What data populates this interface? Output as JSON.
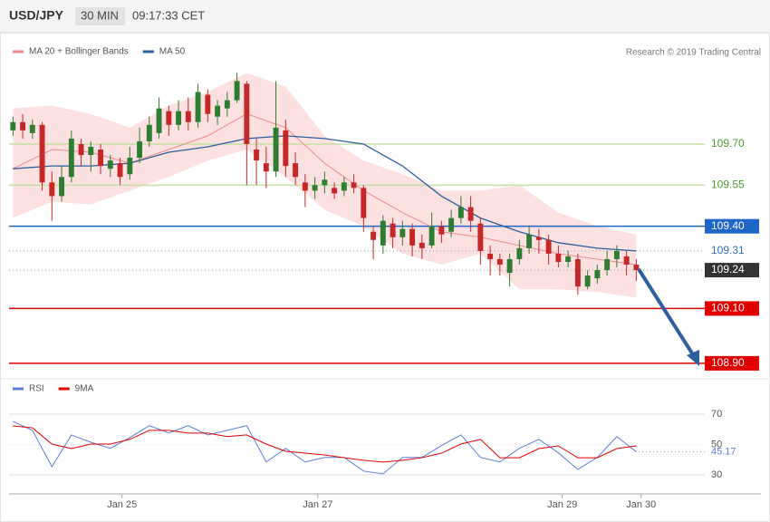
{
  "header": {
    "symbol": "USD/JPY",
    "interval": "30 MIN",
    "time": "09:17:33 CET"
  },
  "chart_data": [
    {
      "type": "candlestick",
      "credit": "Research © 2019 Trading Central",
      "up_color": "#2e7d32",
      "down_color": "#c62828",
      "candles": [
        [
          109.75,
          109.8,
          109.73,
          109.78
        ],
        [
          109.78,
          109.81,
          109.72,
          109.75
        ],
        [
          109.74,
          109.79,
          109.72,
          109.77
        ],
        [
          109.77,
          109.78,
          109.53,
          109.56
        ],
        [
          109.56,
          109.6,
          109.42,
          109.51
        ],
        [
          109.51,
          109.62,
          109.49,
          109.58
        ],
        [
          109.58,
          109.75,
          109.56,
          109.72
        ],
        [
          109.7,
          109.72,
          109.62,
          109.66
        ],
        [
          109.66,
          109.71,
          109.6,
          109.69
        ],
        [
          109.68,
          109.7,
          109.59,
          109.62
        ],
        [
          109.61,
          109.66,
          109.58,
          109.64
        ],
        [
          109.63,
          109.65,
          109.55,
          109.58
        ],
        [
          109.59,
          109.69,
          109.57,
          109.65
        ],
        [
          109.65,
          109.76,
          109.63,
          109.71
        ],
        [
          109.71,
          109.8,
          109.69,
          109.77
        ],
        [
          109.74,
          109.87,
          109.72,
          109.83
        ],
        [
          109.82,
          109.84,
          109.73,
          109.77
        ],
        [
          109.77,
          109.86,
          109.75,
          109.82
        ],
        [
          109.82,
          109.87,
          109.75,
          109.78
        ],
        [
          109.78,
          109.92,
          109.76,
          109.89
        ],
        [
          109.88,
          109.9,
          109.78,
          109.81
        ],
        [
          109.8,
          109.86,
          109.77,
          109.84
        ],
        [
          109.83,
          109.89,
          109.8,
          109.86
        ],
        [
          109.86,
          109.96,
          109.85,
          109.93
        ],
        [
          109.92,
          109.93,
          109.55,
          109.7
        ],
        [
          109.68,
          109.72,
          109.55,
          109.64
        ],
        [
          109.63,
          109.69,
          109.54,
          109.6
        ],
        [
          109.6,
          109.93,
          109.58,
          109.76
        ],
        [
          109.75,
          109.79,
          109.58,
          109.62
        ],
        [
          109.63,
          109.67,
          109.55,
          109.58
        ],
        [
          109.56,
          109.59,
          109.47,
          109.53
        ],
        [
          109.53,
          109.58,
          109.5,
          109.55
        ],
        [
          109.55,
          109.6,
          109.52,
          109.57
        ],
        [
          109.54,
          109.56,
          109.5,
          109.52
        ],
        [
          109.53,
          109.58,
          109.51,
          109.56
        ],
        [
          109.56,
          109.59,
          109.52,
          109.54
        ],
        [
          109.54,
          109.55,
          109.38,
          109.43
        ],
        [
          109.38,
          109.4,
          109.28,
          109.35
        ],
        [
          109.33,
          109.44,
          109.3,
          109.42
        ],
        [
          109.41,
          109.43,
          109.32,
          109.36
        ],
        [
          109.36,
          109.42,
          109.33,
          109.39
        ],
        [
          109.39,
          109.41,
          109.29,
          109.33
        ],
        [
          109.34,
          109.37,
          109.28,
          109.32
        ],
        [
          109.33,
          109.45,
          109.32,
          109.4
        ],
        [
          109.4,
          109.42,
          109.34,
          109.37
        ],
        [
          109.38,
          109.46,
          109.36,
          109.43
        ],
        [
          109.43,
          109.51,
          109.41,
          109.47
        ],
        [
          109.47,
          109.51,
          109.38,
          109.42
        ],
        [
          109.41,
          109.43,
          109.26,
          109.31
        ],
        [
          109.3,
          109.33,
          109.22,
          109.28
        ],
        [
          109.28,
          109.3,
          109.22,
          109.26
        ],
        [
          109.23,
          109.3,
          109.18,
          109.28
        ],
        [
          109.28,
          109.35,
          109.26,
          109.32
        ],
        [
          109.32,
          109.4,
          109.3,
          109.37
        ],
        [
          109.36,
          109.39,
          109.3,
          109.35
        ],
        [
          109.35,
          109.37,
          109.26,
          109.3
        ],
        [
          109.3,
          109.33,
          109.25,
          109.27
        ],
        [
          109.27,
          109.31,
          109.25,
          109.29
        ],
        [
          109.28,
          109.3,
          109.15,
          109.18
        ],
        [
          109.18,
          109.24,
          109.17,
          109.22
        ],
        [
          109.21,
          109.26,
          109.19,
          109.24
        ],
        [
          109.24,
          109.31,
          109.22,
          109.28
        ],
        [
          109.28,
          109.33,
          109.25,
          109.31
        ],
        [
          109.29,
          109.31,
          109.22,
          109.26
        ],
        [
          109.26,
          109.28,
          109.2,
          109.24
        ]
      ],
      "x": [
        0,
        4,
        8,
        12,
        16,
        20,
        24,
        28,
        32,
        36,
        40,
        44,
        48,
        52,
        56,
        60,
        64
      ],
      "series": [
        {
          "name": "MA 20 + Bollinger Bands",
          "color": "#f08a8a",
          "band_color": "#fde0e0",
          "values": [
            109.61,
            109.68,
            109.67,
            109.63,
            109.68,
            109.73,
            109.81,
            109.76,
            109.63,
            109.53,
            109.45,
            109.38,
            109.36,
            109.33,
            109.3,
            109.28,
            109.26
          ],
          "upper": [
            109.83,
            109.84,
            109.81,
            109.76,
            109.84,
            109.89,
            109.96,
            109.91,
            109.73,
            109.64,
            109.59,
            109.53,
            109.53,
            109.55,
            109.45,
            109.4,
            109.37
          ],
          "lower": [
            109.43,
            109.49,
            109.48,
            109.53,
            109.58,
            109.64,
            109.68,
            109.58,
            109.46,
            109.4,
            109.3,
            109.26,
            109.3,
            109.17,
            109.17,
            109.16,
            109.14
          ]
        },
        {
          "name": "MA 50",
          "color": "#2c5f9e",
          "values": [
            109.61,
            109.62,
            109.62,
            109.63,
            109.67,
            109.69,
            109.72,
            109.73,
            109.72,
            109.7,
            109.62,
            109.51,
            109.43,
            109.38,
            109.34,
            109.32,
            109.31
          ]
        }
      ],
      "levels": [
        {
          "value": 109.7,
          "label": "109.70",
          "color": "#c5e0a5",
          "text_color": "#4c9a2a",
          "style": "solid",
          "box": false
        },
        {
          "value": 109.55,
          "label": "109.55",
          "color": "#c5e0a5",
          "text_color": "#4c9a2a",
          "style": "solid",
          "box": false
        },
        {
          "value": 109.4,
          "label": "109.40",
          "color": "#1f66c8",
          "text_color": "#ffffff",
          "style": "solid",
          "box": true
        },
        {
          "value": 109.31,
          "label": "109.31",
          "color": "#999999",
          "text_color": "#2b6cc4",
          "style": "dotted",
          "box": false
        },
        {
          "value": 109.24,
          "label": "109.24",
          "color": "#999999",
          "text_color": "#ffffff",
          "box_color": "#333333",
          "style": "dotted",
          "box": true
        },
        {
          "value": 109.1,
          "label": "109.10",
          "color": "#e00000",
          "text_color": "#ffffff",
          "style": "solid",
          "box": true
        },
        {
          "value": 108.9,
          "label": "108.90",
          "color": "#e00000",
          "text_color": "#ffffff",
          "style": "solid",
          "box": true
        }
      ],
      "ylim": [
        108.85,
        110.1
      ],
      "xlim": [
        -0.4,
        76.8
      ]
    },
    {
      "type": "line",
      "x": [
        0,
        2,
        4,
        6,
        8,
        10,
        12,
        14,
        16,
        18,
        20,
        22,
        24,
        26,
        28,
        30,
        32,
        34,
        36,
        38,
        40,
        42,
        44,
        46,
        48,
        50,
        52,
        54,
        56,
        58,
        60,
        62,
        64
      ],
      "series": [
        {
          "name": "RSI",
          "color": "#5b7fd6",
          "values": [
            65.2,
            59.3,
            35.4,
            56.3,
            51.5,
            47.5,
            54.6,
            62.4,
            57.6,
            62.4,
            56.3,
            59.3,
            62.4,
            38.5,
            47.5,
            38.5,
            41.5,
            41.5,
            32.5,
            30.7,
            41.5,
            41.5,
            49.3,
            56.3,
            41.5,
            38.5,
            47.5,
            53.4,
            44.5,
            33.6,
            41.5,
            55.2,
            45.17
          ]
        },
        {
          "name": "9MA",
          "color": "#e00000",
          "values": [
            62.2,
            61.0,
            50.3,
            47.3,
            50.3,
            50.3,
            53.4,
            59.3,
            59.3,
            57.5,
            57.5,
            55.2,
            56.3,
            50.3,
            45.5,
            44.3,
            43.1,
            41.3,
            39.6,
            38.4,
            39.6,
            41.3,
            44.3,
            50.3,
            53.4,
            41.3,
            41.3,
            47.3,
            49.1,
            41.3,
            41.3,
            47.3,
            49.1
          ]
        }
      ],
      "last_value": {
        "value": 45.17,
        "label": "45.17"
      },
      "ylim": [
        20,
        91
      ],
      "yticks": [
        70,
        50,
        30
      ],
      "xlim": [
        -0.4,
        76.8
      ],
      "xticks": [
        {
          "value": 11.2,
          "label": "Jan 25"
        },
        {
          "value": 31.3,
          "label": "Jan 27"
        },
        {
          "value": 56.4,
          "label": "Jan 29"
        },
        {
          "value": 64.5,
          "label": "Jan 30"
        }
      ]
    }
  ]
}
